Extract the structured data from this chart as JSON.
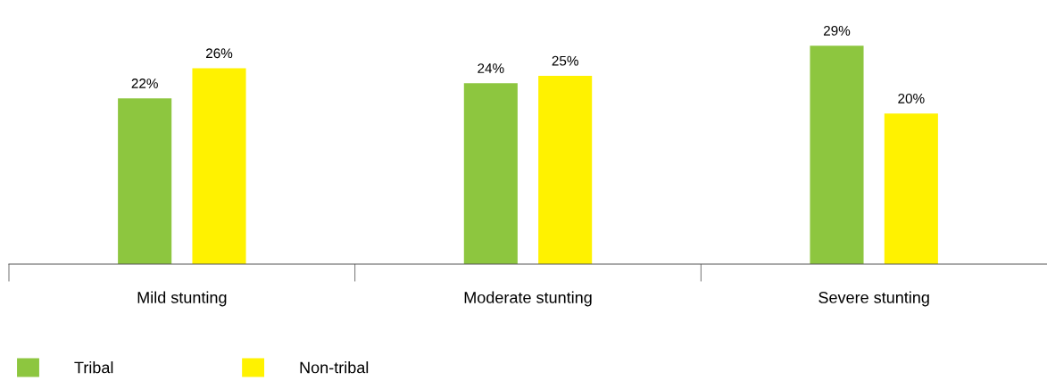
{
  "chart_data": {
    "type": "bar",
    "categories": [
      "Mild stunting",
      "Moderate stunting",
      "Severe stunting"
    ],
    "series": [
      {
        "name": "Tribal",
        "color": "#8dc63f",
        "values": [
          22,
          24,
          29
        ],
        "value_labels": [
          "22%",
          "24%",
          "29%"
        ]
      },
      {
        "name": "Non-tribal",
        "color": "#fff200",
        "values": [
          26,
          25,
          20
        ],
        "value_labels": [
          "26%",
          "25%",
          "20%"
        ]
      }
    ],
    "legend": "bottom left",
    "grid": false
  }
}
